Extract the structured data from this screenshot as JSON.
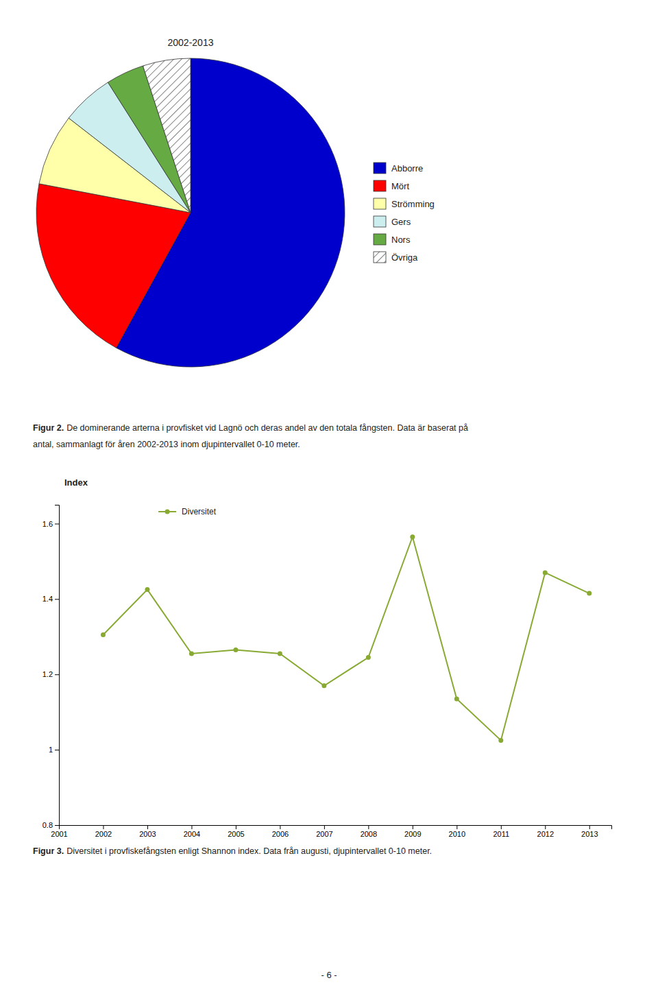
{
  "chart_data": [
    {
      "type": "pie",
      "title": "2002-2013",
      "categories": [
        "Abborre",
        "Mört",
        "Strömming",
        "Gers",
        "Nors",
        "Övriga"
      ],
      "values": [
        58.0,
        20.0,
        7.5,
        5.5,
        4.0,
        5.0
      ],
      "colors": [
        "#0000CC",
        "#FF0000",
        "#FFFFAA",
        "#CCEEEE",
        "#66AA44",
        "white"
      ],
      "legend": "right",
      "annotations": [
        "Figur 2.",
        "De dominerande arterna i provfisket vid Lagnö och deras andel av den totala fångsten. Data är baserat på",
        "antal, sammanlagt för åren 2002-2013 inom djupintervallet 0-10 meter."
      ]
    },
    {
      "type": "line",
      "ylabel": "Index",
      "x": [
        2002,
        2003,
        2004,
        2005,
        2006,
        2007,
        2008,
        2009,
        2010,
        2011,
        2012,
        2013
      ],
      "series": [
        {
          "name": "Diversitet",
          "color": "#88AA33",
          "marker": "circle",
          "line_style": "solid",
          "values": [
            1.305,
            1.425,
            1.255,
            1.265,
            1.255,
            1.17,
            1.245,
            1.565,
            1.135,
            1.025,
            1.47,
            1.415
          ]
        }
      ],
      "xlim": [
        2001,
        2013.5
      ],
      "xticks": [
        2001,
        2002,
        2003,
        2004,
        2005,
        2006,
        2007,
        2008,
        2009,
        2010,
        2011,
        2012,
        2013
      ],
      "ylim": [
        0.8,
        1.65
      ],
      "yticks": [
        0.8,
        1,
        1.2,
        1.4,
        1.6
      ],
      "grid": false,
      "legend": "upper left",
      "annotations": [
        "Figur 3.",
        "Diversitet i provfiskefångsten enligt Shannon index. Data från augusti, djupintervallet 0-10 meter.",
        "- 6 -"
      ]
    }
  ]
}
